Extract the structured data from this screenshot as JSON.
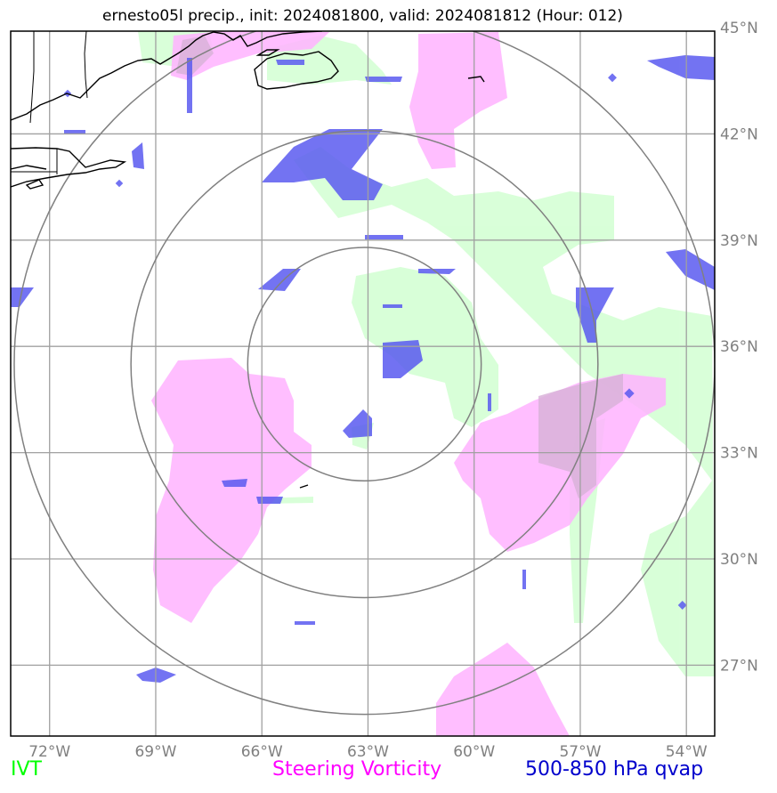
{
  "title": "ernesto05l precip., init: 2024081800, valid: 2024081812 (Hour: 012)",
  "lon_ticks": [
    {
      "lon": -72,
      "label": "72°W"
    },
    {
      "lon": -69,
      "label": "69°W"
    },
    {
      "lon": -66,
      "label": "66°W"
    },
    {
      "lon": -63,
      "label": "63°W"
    },
    {
      "lon": -60,
      "label": "60°W"
    },
    {
      "lon": -57,
      "label": "57°W"
    },
    {
      "lon": -54,
      "label": "54°W"
    }
  ],
  "lat_ticks": [
    {
      "lat": 45,
      "label": "45°N"
    },
    {
      "lat": 42,
      "label": "42°N"
    },
    {
      "lat": 39,
      "label": "39°N"
    },
    {
      "lat": 36,
      "label": "36°N"
    },
    {
      "lat": 33,
      "label": "33°N"
    },
    {
      "lat": 30,
      "label": "30°N"
    },
    {
      "lat": 27,
      "label": "27°N"
    }
  ],
  "extent": {
    "lon_min": -73.1,
    "lon_max": -53.2,
    "lat_min": 25.0,
    "lat_max": 44.9
  },
  "storm_center": {
    "lon": -63.1,
    "lat": 35.5
  },
  "range_ring_radii_deg": [
    3.3,
    6.6,
    9.9
  ],
  "legend": [
    {
      "label": "IVT",
      "color": "#00ff00"
    },
    {
      "label": "Steering Vorticity",
      "color": "#ff00ff"
    },
    {
      "label": "500-850 hPa qvap",
      "color": "#0000cc"
    }
  ],
  "colors": {
    "ivt_fill": "#ccffcc",
    "vorticity_fill": "#ffb3ff",
    "qvap_fill": "#5a5af0",
    "grid": "#a0a0a0",
    "rings": "#808080",
    "coast": "#000000"
  }
}
